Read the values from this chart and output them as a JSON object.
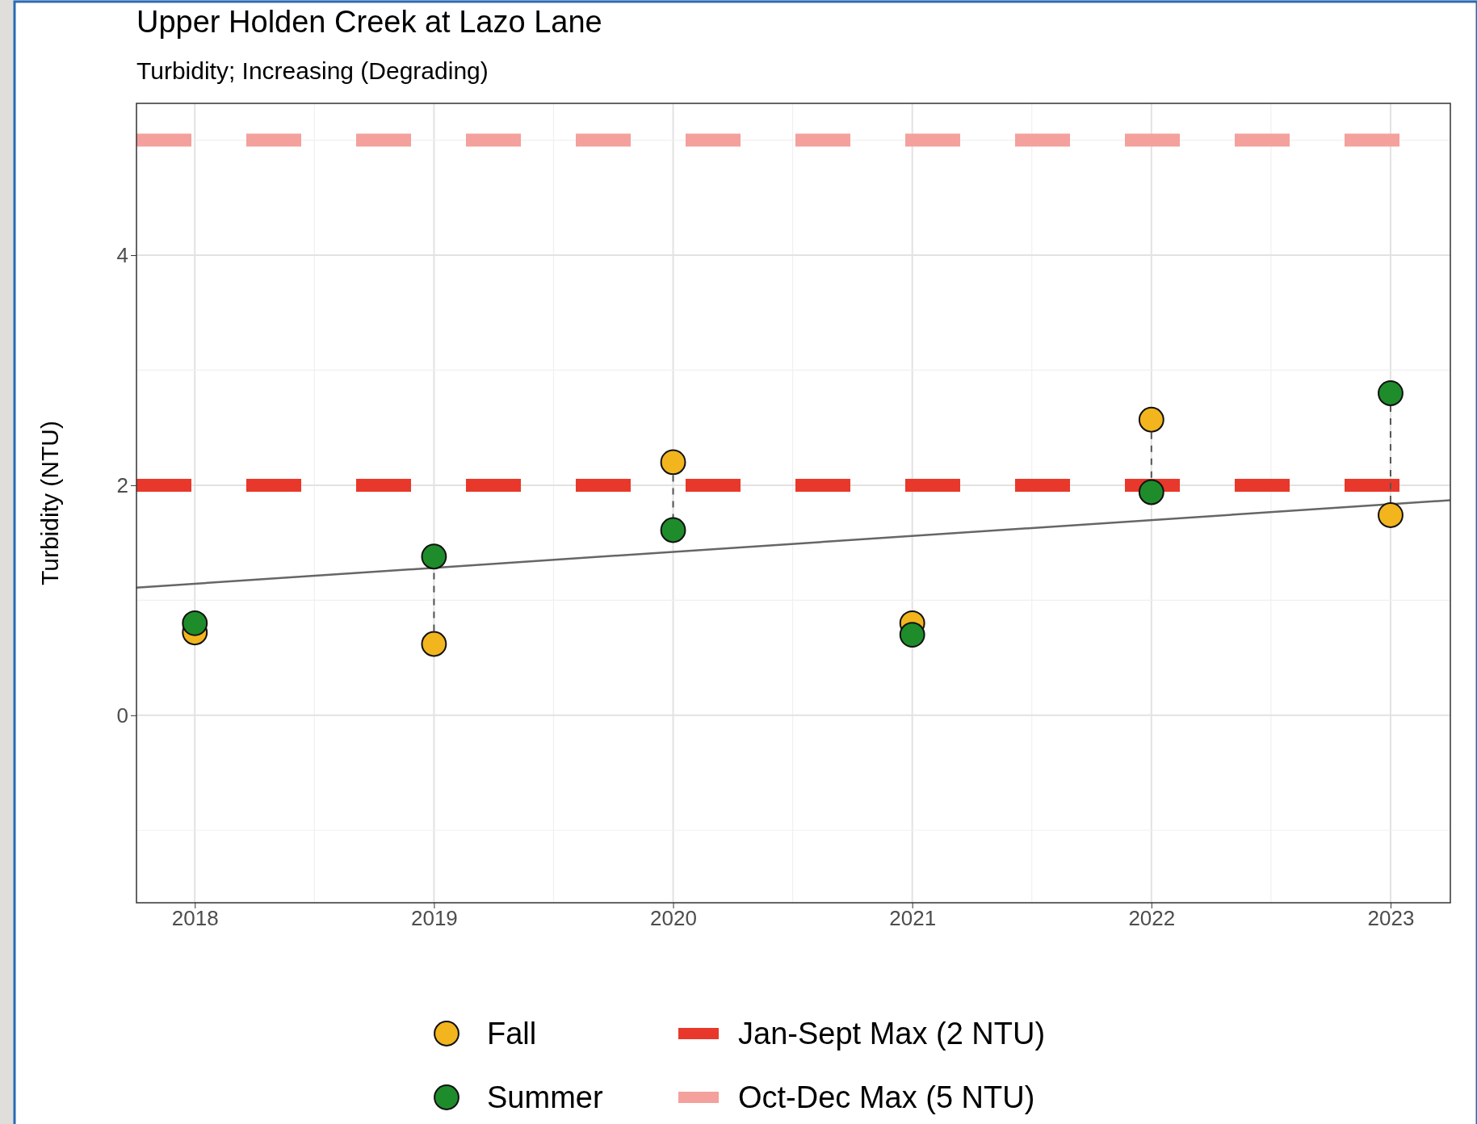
{
  "chart_data": {
    "type": "scatter",
    "title": "Upper Holden Creek at Lazo Lane",
    "subtitle": "Turbidity; Increasing (Degrading)",
    "ylabel": "Turbidity (NTU)",
    "x": [
      2018,
      2019,
      2020,
      2021,
      2022,
      2023
    ],
    "series": [
      {
        "name": "Fall",
        "color": "#f2b51e",
        "values": [
          0.72,
          0.62,
          2.2,
          0.8,
          2.57,
          1.74
        ]
      },
      {
        "name": "Summer",
        "color": "#1e8c2a",
        "values": [
          0.8,
          1.38,
          1.61,
          0.7,
          1.94,
          2.8
        ]
      },
      {
        "type": "line",
        "color": "#666666",
        "x": [
          2017.756,
          2023.25
        ],
        "values": [
          1.11,
          1.87
        ],
        "marker": "none",
        "line_style": "solid"
      }
    ],
    "ref_lines": [
      {
        "axis": "y",
        "value": 2,
        "label": "Jan-Sept Max (2 NTU)",
        "color": "#e8382b",
        "line_style": "dashed"
      },
      {
        "axis": "y",
        "value": 5,
        "label": "Oct-Dec Max (5 NTU)",
        "color": "#f4a09c",
        "line_style": "dashed"
      }
    ],
    "xlim": [
      2017.756,
      2023.25
    ],
    "ylim": [
      -1.63,
      5.32
    ],
    "xticks": [
      2018,
      2019,
      2020,
      2021,
      2022,
      2023
    ],
    "yticks": [
      0,
      2,
      4
    ],
    "grid": true,
    "legend": "bottom",
    "marker": "circle"
  }
}
